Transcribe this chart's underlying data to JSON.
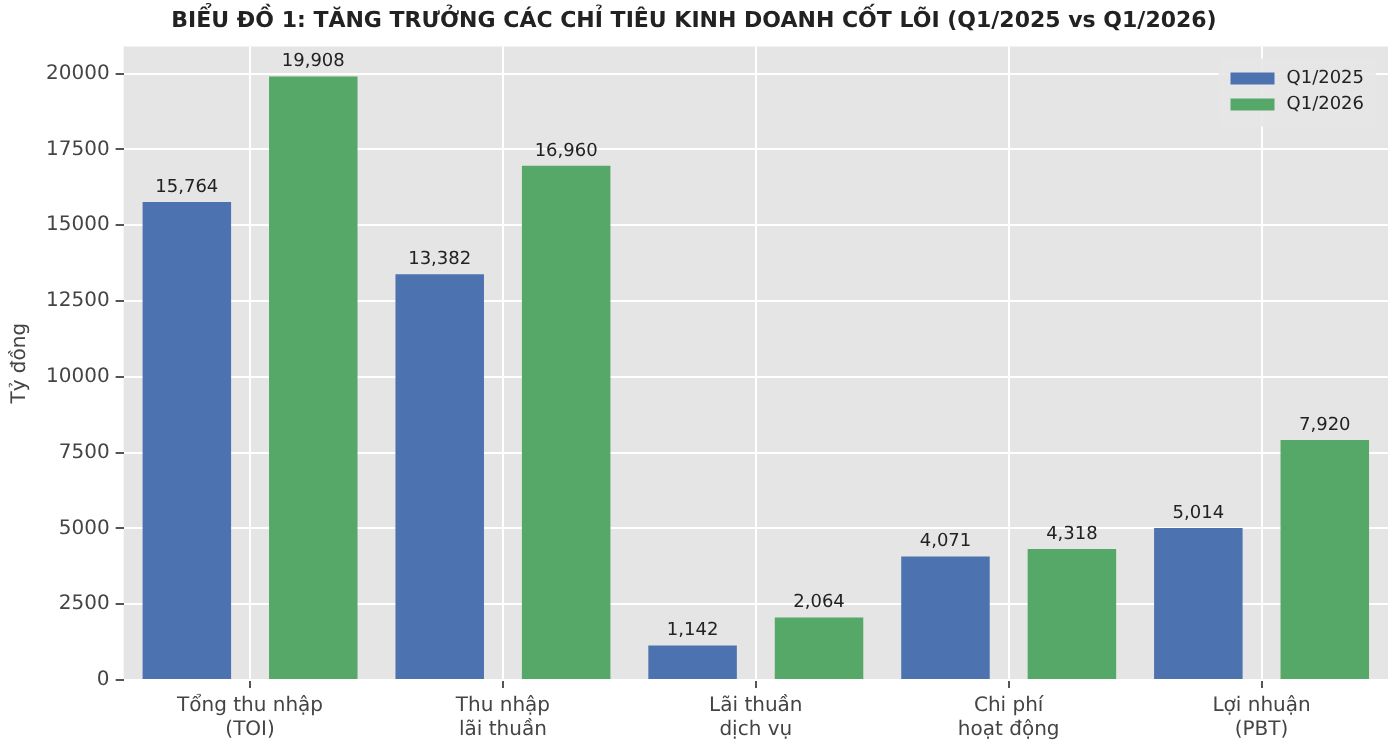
{
  "chart_data": {
    "type": "bar",
    "title": "BIỂU ĐỒ 1: TĂNG TRƯỞNG CÁC CHỈ TIÊU KINH DOANH CỐT LÕI (Q1/2025 vs Q1/2026)",
    "ylabel": "Tỷ đồng",
    "categories": [
      "Tổng thu nhập\n(TOI)",
      "Thu nhập\nlãi thuần",
      "Lãi thuần\ndịch vụ",
      "Chi phí\nhoạt động",
      "Lợi nhuận\n(PBT)"
    ],
    "series": [
      {
        "name": "Q1/2025",
        "color": "#4c72b0",
        "values": [
          15764,
          13382,
          1142,
          4071,
          5014
        ],
        "value_labels": [
          "15,764",
          "13,382",
          "1,142",
          "4,071",
          "5,014"
        ]
      },
      {
        "name": "Q1/2026",
        "color": "#55a868",
        "values": [
          19908,
          16960,
          2064,
          4318,
          7920
        ],
        "value_labels": [
          "19,908",
          "16,960",
          "2,064",
          "4,318",
          "7,920"
        ]
      }
    ],
    "ylim": [
      0,
      20900
    ],
    "yticks": [
      0,
      2500,
      5000,
      7500,
      10000,
      12500,
      15000,
      17500,
      20000
    ],
    "grid": true,
    "legend": "top right"
  }
}
